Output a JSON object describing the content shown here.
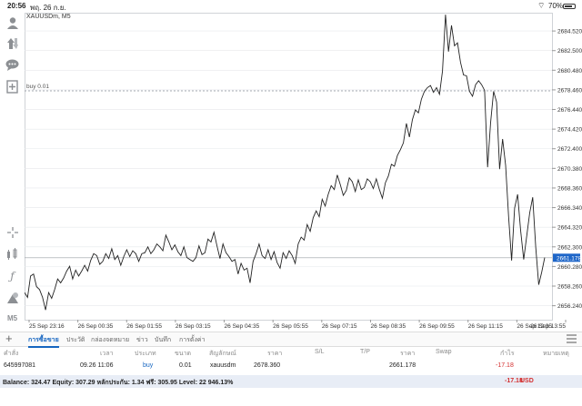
{
  "status_bar": {
    "time": "20:56",
    "date": "พฤ. 26 ก.ย.",
    "battery": "70%"
  },
  "chart": {
    "symbol_label": "XAUUSDm, M5",
    "order_line_label": "buy 0.01",
    "current_price_label": "2661.178",
    "colors": {
      "line": "#222222",
      "order_line": "#8a9099",
      "price_badge": "#1e66c8",
      "grid": "#e6e8eb"
    }
  },
  "chart_data": {
    "type": "line",
    "ylim": [
      2654.8,
      2686.4
    ],
    "y_ticks": [
      "2684.520",
      "2682.500",
      "2680.480",
      "2678.460",
      "2676.440",
      "2674.420",
      "2672.400",
      "2670.380",
      "2668.360",
      "2666.340",
      "2664.320",
      "2662.300",
      "2660.280",
      "2658.260",
      "2656.240"
    ],
    "x_ticks": [
      "25 Sep 23:16",
      "26 Sep 00:35",
      "26 Sep 01:55",
      "26 Sep 03:15",
      "26 Sep 04:35",
      "26 Sep 05:55",
      "26 Sep 07:15",
      "26 Sep 08:35",
      "26 Sep 09:55",
      "26 Sep 11:15",
      "26 Sep 12:35",
      "26 Sep 13:55"
    ],
    "order_level": 2678.36,
    "current_price": 2661.178,
    "values": [
      2657.6,
      2657.1,
      2659.3,
      2659.5,
      2658.2,
      2657.9,
      2657.1,
      2655.8,
      2657.6,
      2657.0,
      2657.9,
      2659.0,
      2658.6,
      2659.1,
      2659.8,
      2660.3,
      2659.0,
      2659.9,
      2659.3,
      2659.8,
      2660.4,
      2659.8,
      2660.9,
      2661.6,
      2661.4,
      2660.5,
      2660.8,
      2661.6,
      2661.1,
      2662.1,
      2661.0,
      2661.4,
      2660.4,
      2661.3,
      2662.0,
      2661.3,
      2661.9,
      2661.6,
      2660.8,
      2661.6,
      2661.7,
      2662.3,
      2661.6,
      2662.0,
      2662.6,
      2662.3,
      2661.9,
      2663.5,
      2662.8,
      2662.0,
      2662.5,
      2661.8,
      2661.4,
      2662.3,
      2661.2,
      2661.0,
      2660.8,
      2661.2,
      2662.4,
      2661.5,
      2661.7,
      2663.1,
      2662.8,
      2663.8,
      2662.4,
      2661.1,
      2662.6,
      2661.7,
      2661.3,
      2660.8,
      2661.0,
      2659.5,
      2660.6,
      2659.9,
      2660.1,
      2658.6,
      2660.8,
      2661.6,
      2662.6,
      2661.4,
      2661.1,
      2662.0,
      2661.0,
      2661.8,
      2660.7,
      2660.1,
      2661.7,
      2661.1,
      2661.9,
      2661.4,
      2660.6,
      2662.6,
      2663.3,
      2663.0,
      2664.6,
      2663.9,
      2665.3,
      2666.0,
      2665.4,
      2667.2,
      2666.5,
      2667.7,
      2668.6,
      2668.2,
      2669.7,
      2668.7,
      2667.6,
      2668.1,
      2669.4,
      2669.0,
      2668.0,
      2669.2,
      2668.2,
      2668.4,
      2669.3,
      2669.0,
      2668.3,
      2669.3,
      2668.2,
      2667.3,
      2668.9,
      2669.6,
      2670.8,
      2670.6,
      2671.7,
      2672.3,
      2673.0,
      2675.0,
      2673.6,
      2675.4,
      2676.4,
      2676.1,
      2677.5,
      2678.3,
      2678.7,
      2678.9,
      2678.2,
      2678.7,
      2678.0,
      2680.4,
      2686.2,
      2682.4,
      2685.1,
      2683.0,
      2683.3,
      2681.3,
      2680.0,
      2679.9,
      2678.3,
      2677.8,
      2679.0,
      2679.4,
      2679.0,
      2678.4,
      2670.5,
      2675.1,
      2678.3,
      2677.2,
      2670.3,
      2673.4,
      2670.7,
      2665.4,
      2660.9,
      2666.3,
      2667.7,
      2664.0,
      2661.0,
      2663.4,
      2665.8,
      2667.4,
      2662.3,
      2658.4,
      2659.7,
      2661.2
    ]
  },
  "toolbar": {
    "m5_label": "M5"
  },
  "tabs": {
    "items": [
      {
        "label": "การซื้อขาย",
        "active": true
      },
      {
        "label": "ประวัติ",
        "active": false
      },
      {
        "label": "กล่องจดหมาย",
        "active": false
      },
      {
        "label": "ข่าว",
        "active": false
      },
      {
        "label": "บันทึก",
        "active": false
      },
      {
        "label": "การตั้งค่า",
        "active": false
      }
    ]
  },
  "table": {
    "headers": [
      "คำสั่ง",
      "เวลา",
      "ประเภท",
      "ขนาด",
      "สัญลักษณ์",
      "ราคา",
      "S/L",
      "T/P",
      "ราคา",
      "Swap",
      "กำไร",
      "หมายเหตุ"
    ],
    "row": {
      "order": "645997081",
      "time": "09.26 11:06",
      "type": "buy",
      "size": "0.01",
      "symbol": "xauusdm",
      "open_price": "2678.360",
      "sl": "",
      "tp": "",
      "price": "2661.178",
      "swap": "",
      "profit": "-17.18"
    }
  },
  "summary": {
    "text": "Balance: 324.47 Equity: 307.29 หลักประกัน: 1.34 ฟรี: 305.95 Level: 22 946.13%",
    "profit": "-17.18",
    "currency": "USD"
  }
}
